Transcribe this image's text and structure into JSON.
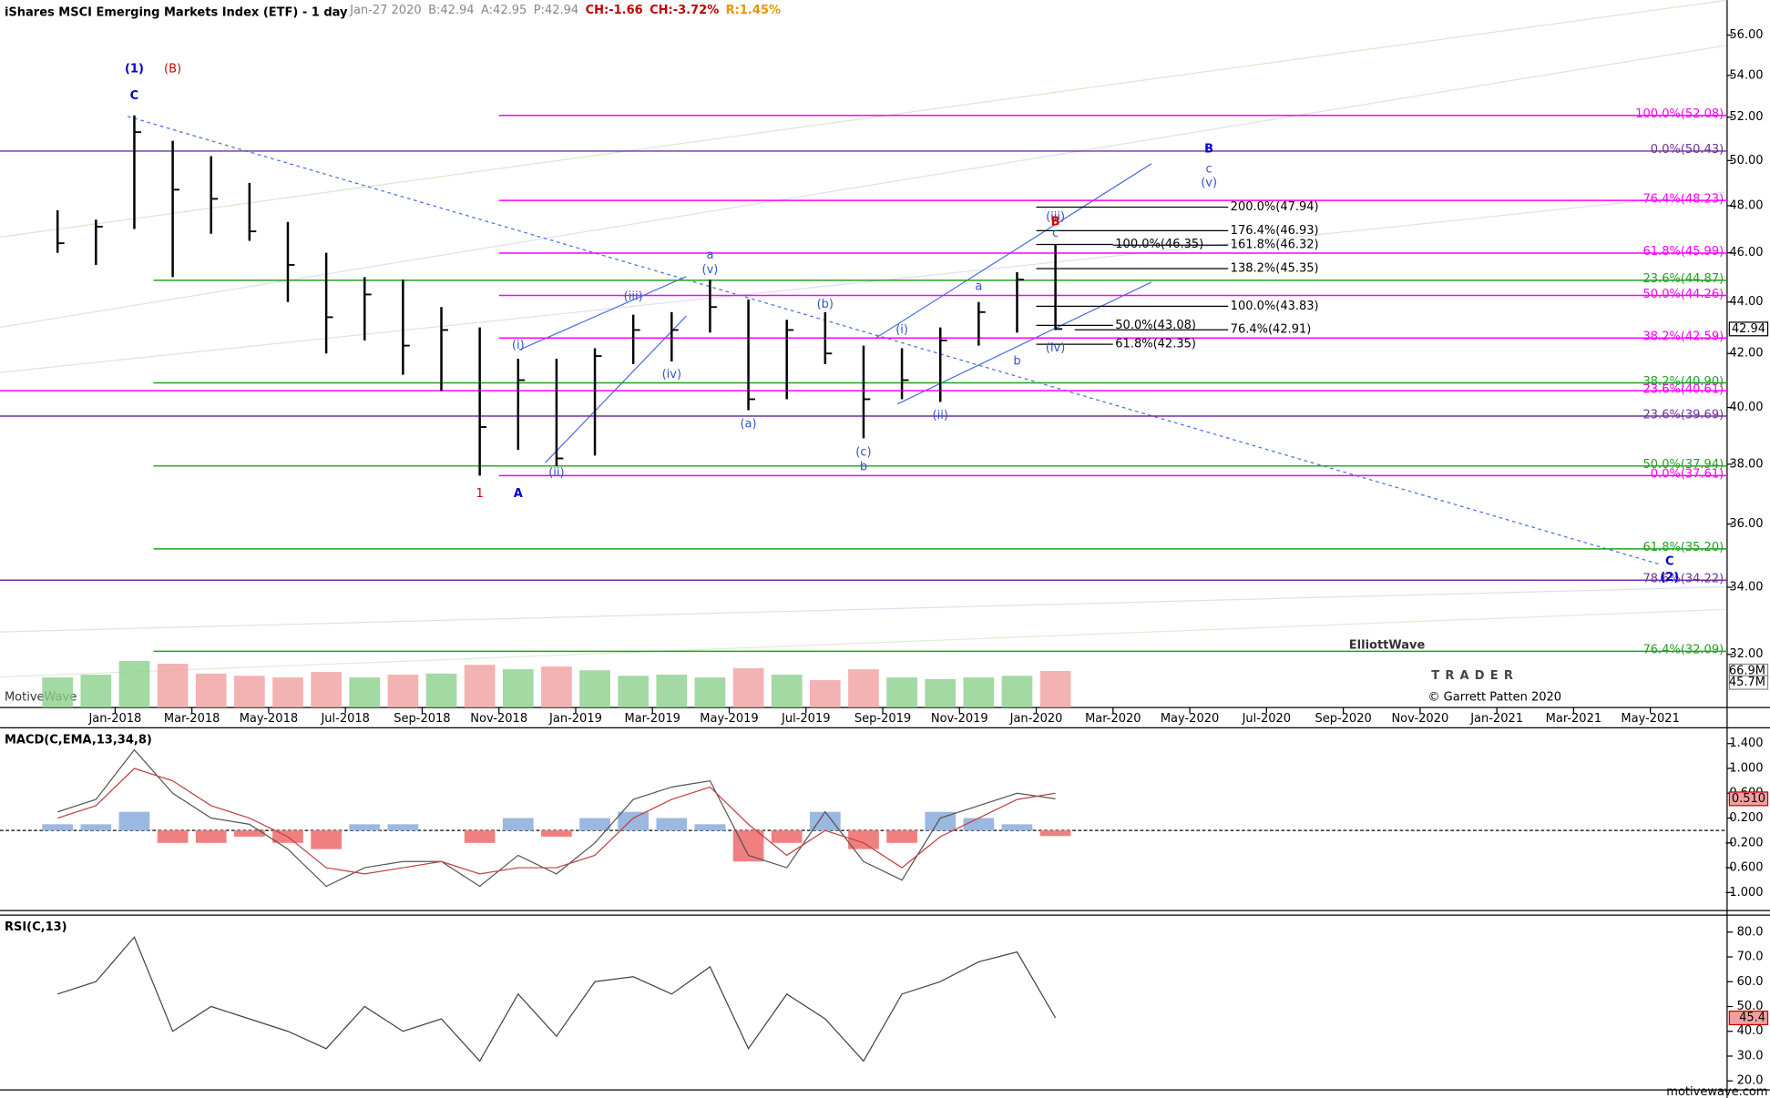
{
  "chart_data": {
    "type": "ohlc",
    "title": "iShares MSCI Emerging Markets Index (ETF) - 1 day",
    "header": [
      "Jan-27 2020",
      "B:42.94",
      "A:42.95",
      "P:42.94",
      "CH:-1.66",
      "CH:-3.72%",
      "R:1.45%"
    ],
    "header_colors": [
      "#888",
      "#888",
      "#888",
      "#888",
      "#c00000",
      "#c00000",
      "#e69500"
    ],
    "watermark": "MotiveWave",
    "copyright": "© Garrett Patten 2020",
    "site": "motivewave.com",
    "logo": [
      "ElliottWave",
      "TRADER"
    ],
    "log_scale": true,
    "x": [
      "2017-11",
      "2017-12",
      "2018-01",
      "2018-02",
      "2018-03",
      "2018-04",
      "2018-05",
      "2018-06",
      "2018-07",
      "2018-08",
      "2018-09",
      "2018-10",
      "2018-11",
      "2018-12",
      "2019-01",
      "2019-02",
      "2019-03",
      "2019-04",
      "2019-05",
      "2019-06",
      "2019-07",
      "2019-08",
      "2019-09",
      "2019-10",
      "2019-11",
      "2019-12",
      "2020-01"
    ],
    "high": [
      47.8,
      47.4,
      52.08,
      50.9,
      50.2,
      49.0,
      47.3,
      46.0,
      45.0,
      44.9,
      43.8,
      43.0,
      41.8,
      41.8,
      42.2,
      43.5,
      43.6,
      44.9,
      44.1,
      43.3,
      43.6,
      42.3,
      42.2,
      43.0,
      44.0,
      45.2,
      46.35
    ],
    "low": [
      46.0,
      45.5,
      47.0,
      45.0,
      46.8,
      46.5,
      44.0,
      42.0,
      42.5,
      41.2,
      40.6,
      37.61,
      38.5,
      37.94,
      38.3,
      41.6,
      41.7,
      42.8,
      39.9,
      40.3,
      41.6,
      38.9,
      40.3,
      40.2,
      42.3,
      42.8,
      42.9
    ],
    "close": [
      46.4,
      47.1,
      51.3,
      48.7,
      48.3,
      46.9,
      45.5,
      43.4,
      44.3,
      42.3,
      42.9,
      39.3,
      41.0,
      38.2,
      41.9,
      42.9,
      42.9,
      43.8,
      40.3,
      42.9,
      42.0,
      40.3,
      41.0,
      42.5,
      43.6,
      44.9,
      42.94
    ],
    "ylim": [
      30.5,
      57.8
    ],
    "yticks": [
      {
        "value": 32,
        "label": "32.00"
      },
      {
        "value": 34,
        "label": "34.00"
      },
      {
        "value": 36,
        "label": "36.00"
      },
      {
        "value": 38,
        "label": "38.00"
      },
      {
        "value": 40,
        "label": "40.00"
      },
      {
        "value": 42,
        "label": "42.00"
      },
      {
        "value": 44,
        "label": "44.00"
      },
      {
        "value": 46,
        "label": "46.00"
      },
      {
        "value": 48,
        "label": "48.00"
      },
      {
        "value": 50,
        "label": "50.00"
      },
      {
        "value": 52,
        "label": "52.00"
      },
      {
        "value": 54,
        "label": "54.00"
      },
      {
        "value": 56,
        "label": "56.00"
      }
    ],
    "price_tag": {
      "value": 42.94,
      "label": "42.94"
    },
    "xlim": [
      "2017-10",
      "2021-07"
    ],
    "xticks": [
      {
        "value": "2018-01",
        "label": "Jan-2018"
      },
      {
        "value": "2018-03",
        "label": "Mar-2018"
      },
      {
        "value": "2018-05",
        "label": "May-2018"
      },
      {
        "value": "2018-07",
        "label": "Jul-2018"
      },
      {
        "value": "2018-09",
        "label": "Sep-2018"
      },
      {
        "value": "2018-11",
        "label": "Nov-2018"
      },
      {
        "value": "2019-01",
        "label": "Jan-2019"
      },
      {
        "value": "2019-03",
        "label": "Mar-2019"
      },
      {
        "value": "2019-05",
        "label": "May-2019"
      },
      {
        "value": "2019-07",
        "label": "Jul-2019"
      },
      {
        "value": "2019-09",
        "label": "Sep-2019"
      },
      {
        "value": "2019-11",
        "label": "Nov-2019"
      },
      {
        "value": "2020-01",
        "label": "Jan-2020"
      },
      {
        "value": "2020-03",
        "label": "Mar-2020"
      },
      {
        "value": "2020-05",
        "label": "May-2020"
      },
      {
        "value": "2020-07",
        "label": "Jul-2020"
      },
      {
        "value": "2020-09",
        "label": "Sep-2020"
      },
      {
        "value": "2020-11",
        "label": "Nov-2020"
      },
      {
        "value": "2021-01",
        "label": "Jan-2021"
      },
      {
        "value": "2021-03",
        "label": "Mar-2021"
      },
      {
        "value": "2021-05",
        "label": "May-2021"
      }
    ],
    "volume": [
      55,
      60,
      85,
      80,
      62,
      58,
      55,
      65,
      55,
      60,
      62,
      78,
      70,
      75,
      68,
      58,
      60,
      55,
      72,
      60,
      50,
      70,
      55,
      52,
      55,
      58,
      66.9
    ],
    "volume_ylim": [
      0,
      200
    ],
    "volume_tags": [
      {
        "value": 66.9,
        "label": "66.9M"
      },
      {
        "value": 45.7,
        "label": "45.7M"
      }
    ],
    "fib_levels": [
      {
        "value": 52.08,
        "label": "100.0%(52.08)",
        "color": "#ff00ff",
        "start": "2018-11"
      },
      {
        "value": 50.43,
        "label": "0.0%(50.43)",
        "color": "#7030a0",
        "start": "2017-10"
      },
      {
        "value": 48.23,
        "label": "76.4%(48.23)",
        "color": "#ff00ff",
        "start": "2018-11"
      },
      {
        "value": 45.99,
        "label": "61.8%(45.99)",
        "color": "#ff00ff",
        "start": "2018-11"
      },
      {
        "value": 44.87,
        "label": "23.6%(44.87)",
        "color": "#22a022",
        "start": "2018-02"
      },
      {
        "value": 44.26,
        "label": "50.0%(44.26)",
        "color": "#ff00ff",
        "start": "2018-11"
      },
      {
        "value": 42.59,
        "label": "38.2%(42.59)",
        "color": "#ff00ff",
        "start": "2018-11"
      },
      {
        "value": 40.9,
        "label": "38.2%(40.90)",
        "color": "#22a022",
        "start": "2018-02"
      },
      {
        "value": 40.61,
        "label": "23.6%(40.61)",
        "color": "#ff00ff",
        "start": "2017-10"
      },
      {
        "value": 39.69,
        "label": "23.6%(39.69)",
        "color": "#7030a0",
        "start": "2017-10"
      },
      {
        "value": 37.94,
        "label": "50.0%(37.94)",
        "color": "#22a022",
        "start": "2018-02"
      },
      {
        "value": 37.61,
        "label": "0.0%(37.61)",
        "color": "#ff00ff",
        "start": "2018-11"
      },
      {
        "value": 35.2,
        "label": "61.8%(35.20)",
        "color": "#22a022",
        "start": "2018-02"
      },
      {
        "value": 34.22,
        "label": "78.6%(34.22)",
        "color": "#7030a0",
        "start": "2017-10"
      },
      {
        "value": 32.09,
        "label": "76.4%(32.09)",
        "color": "#22a022",
        "start": "2018-02"
      }
    ],
    "projections": [
      {
        "value": 47.94,
        "label": "200.0%(47.94)",
        "start": "2020-01",
        "end": "2020-06"
      },
      {
        "value": 46.93,
        "label": "176.4%(46.93)",
        "start": "2020-01",
        "end": "2020-06"
      },
      {
        "value": 46.35,
        "label": "100.0%(46.35)",
        "start": "2020-01",
        "end": "2020-03"
      },
      {
        "value": 46.32,
        "label": "161.8%(46.32)",
        "start": "2020-03",
        "end": "2020-06"
      },
      {
        "value": 45.35,
        "label": "138.2%(45.35)",
        "start": "2020-01",
        "end": "2020-06"
      },
      {
        "value": 43.83,
        "label": "100.0%(43.83)",
        "start": "2020-01",
        "end": "2020-06"
      },
      {
        "value": 43.08,
        "label": "50.0%(43.08)",
        "start": "2020-01",
        "end": "2020-03"
      },
      {
        "value": 42.91,
        "label": "76.4%(42.91)",
        "start": "2020-02",
        "end": "2020-06"
      },
      {
        "value": 42.35,
        "label": "61.8%(42.35)",
        "start": "2020-01",
        "end": "2020-03"
      }
    ],
    "wave_labels": [
      {
        "text": "(1)",
        "x": "2018-01",
        "y": 54.3,
        "color": "#0000cc"
      },
      {
        "text": "(B)",
        "x": "2018-02",
        "y": 54.3,
        "color": "#d00000"
      },
      {
        "text": "C",
        "x": "2018-01",
        "y": 53.0,
        "color": "#0000cc"
      },
      {
        "text": "1",
        "x": "2018-10",
        "y": 37.0,
        "color": "#d00000"
      },
      {
        "text": "A",
        "x": "2018-11",
        "y": 37.0,
        "color": "#0000cc"
      },
      {
        "text": "(i)",
        "x": "2018-11",
        "y": 42.3,
        "color": "#3355cc"
      },
      {
        "text": "(ii)",
        "x": "2018-12",
        "y": 37.7,
        "color": "#3355cc"
      },
      {
        "text": "(iii)",
        "x": "2019-02",
        "y": 44.2,
        "color": "#3355cc"
      },
      {
        "text": "(iv)",
        "x": "2019-03",
        "y": 41.2,
        "color": "#3355cc"
      },
      {
        "text": "a",
        "x": "2019-04",
        "y": 45.9,
        "color": "#3355cc"
      },
      {
        "text": "(v)",
        "x": "2019-04",
        "y": 45.3,
        "color": "#3355cc"
      },
      {
        "text": "(a)",
        "x": "2019-05",
        "y": 39.4,
        "color": "#3355cc"
      },
      {
        "text": "(b)",
        "x": "2019-07",
        "y": 43.9,
        "color": "#3355cc"
      },
      {
        "text": "(c)",
        "x": "2019-08",
        "y": 38.4,
        "color": "#3355cc"
      },
      {
        "text": "b",
        "x": "2019-08",
        "y": 37.9,
        "color": "#3355cc"
      },
      {
        "text": "(i)",
        "x": "2019-09",
        "y": 42.9,
        "color": "#3355cc"
      },
      {
        "text": "(ii)",
        "x": "2019-10",
        "y": 39.7,
        "color": "#3355cc"
      },
      {
        "text": "a",
        "x": "2019-11",
        "y": 44.6,
        "color": "#3355cc"
      },
      {
        "text": "b",
        "x": "2019-12",
        "y": 41.7,
        "color": "#3355cc"
      },
      {
        "text": "(iii)",
        "x": "2020-01",
        "y": 47.5,
        "color": "#3355cc"
      },
      {
        "text": "B",
        "x": "2020-01",
        "y": 47.3,
        "color": "#d00000"
      },
      {
        "text": "c",
        "x": "2020-01",
        "y": 46.8,
        "color": "#3355cc"
      },
      {
        "text": "(iv)",
        "x": "2020-01",
        "y": 42.2,
        "color": "#3355cc"
      },
      {
        "text": "B",
        "x": "2020-05",
        "y": 50.5,
        "color": "#0000cc"
      },
      {
        "text": "c",
        "x": "2020-05",
        "y": 49.6,
        "color": "#3355cc"
      },
      {
        "text": "(v)",
        "x": "2020-05",
        "y": 49.0,
        "color": "#3355cc"
      },
      {
        "text": "C",
        "x": "2021-05",
        "y": 34.8,
        "color": "#0000cc"
      },
      {
        "text": "(2)",
        "x": "2021-05",
        "y": 34.3,
        "color": "#0000cc"
      }
    ],
    "macd": {
      "title": "MACD(C,EMA,13,34,8)",
      "macd": [
        0.3,
        0.5,
        1.3,
        0.6,
        0.2,
        0.1,
        -0.3,
        -0.9,
        -0.6,
        -0.5,
        -0.5,
        -0.9,
        -0.4,
        -0.7,
        -0.2,
        0.5,
        0.7,
        0.8,
        -0.4,
        -0.6,
        0.3,
        -0.5,
        -0.8,
        0.2,
        0.4,
        0.6,
        0.51
      ],
      "signal": [
        0.2,
        0.4,
        1.0,
        0.8,
        0.4,
        0.2,
        -0.1,
        -0.6,
        -0.7,
        -0.6,
        -0.5,
        -0.7,
        -0.6,
        -0.6,
        -0.4,
        0.2,
        0.5,
        0.7,
        0.1,
        -0.4,
        0.0,
        -0.2,
        -0.6,
        -0.1,
        0.2,
        0.5,
        0.6
      ],
      "histogram": [
        0.1,
        0.1,
        0.3,
        -0.2,
        -0.2,
        -0.1,
        -0.2,
        -0.3,
        0.1,
        0.1,
        0.0,
        -0.2,
        0.2,
        -0.1,
        0.2,
        0.3,
        0.2,
        0.1,
        -0.5,
        -0.2,
        0.3,
        -0.3,
        -0.2,
        0.3,
        0.2,
        0.1,
        -0.09
      ],
      "ylim": [
        -1.255,
        1.618
      ],
      "yticks": [
        {
          "value": 1.4,
          "label": "1.400"
        },
        {
          "value": 1.0,
          "label": "1.000"
        },
        {
          "value": 0.6,
          "label": "0.600"
        },
        {
          "value": 0.2,
          "label": "0.200"
        },
        {
          "value": -0.2,
          "label": "-0.200"
        },
        {
          "value": -0.6,
          "label": "-0.600"
        },
        {
          "value": -1.0,
          "label": "-1.000"
        }
      ],
      "tag": {
        "value": 0.51,
        "label": "0.510"
      }
    },
    "rsi": {
      "title": "RSI(C,13)",
      "values": [
        55,
        60,
        78,
        40,
        50,
        45,
        40,
        33,
        50,
        40,
        45,
        28,
        55,
        38,
        60,
        62,
        55,
        66,
        33,
        55,
        45,
        28,
        55,
        60,
        68,
        72,
        45.4
      ],
      "ylim": [
        16.8,
        86.4
      ],
      "yticks": [
        {
          "value": 80,
          "label": "80.0"
        },
        {
          "value": 70,
          "label": "70.0"
        },
        {
          "value": 60,
          "label": "60.0"
        },
        {
          "value": 50,
          "label": "50.0"
        },
        {
          "value": 40,
          "label": "40.0"
        },
        {
          "value": 30,
          "label": "30.0"
        },
        {
          "value": 20,
          "label": "20.0"
        }
      ],
      "tag": {
        "value": 45.4,
        "label": "45.4"
      }
    }
  }
}
